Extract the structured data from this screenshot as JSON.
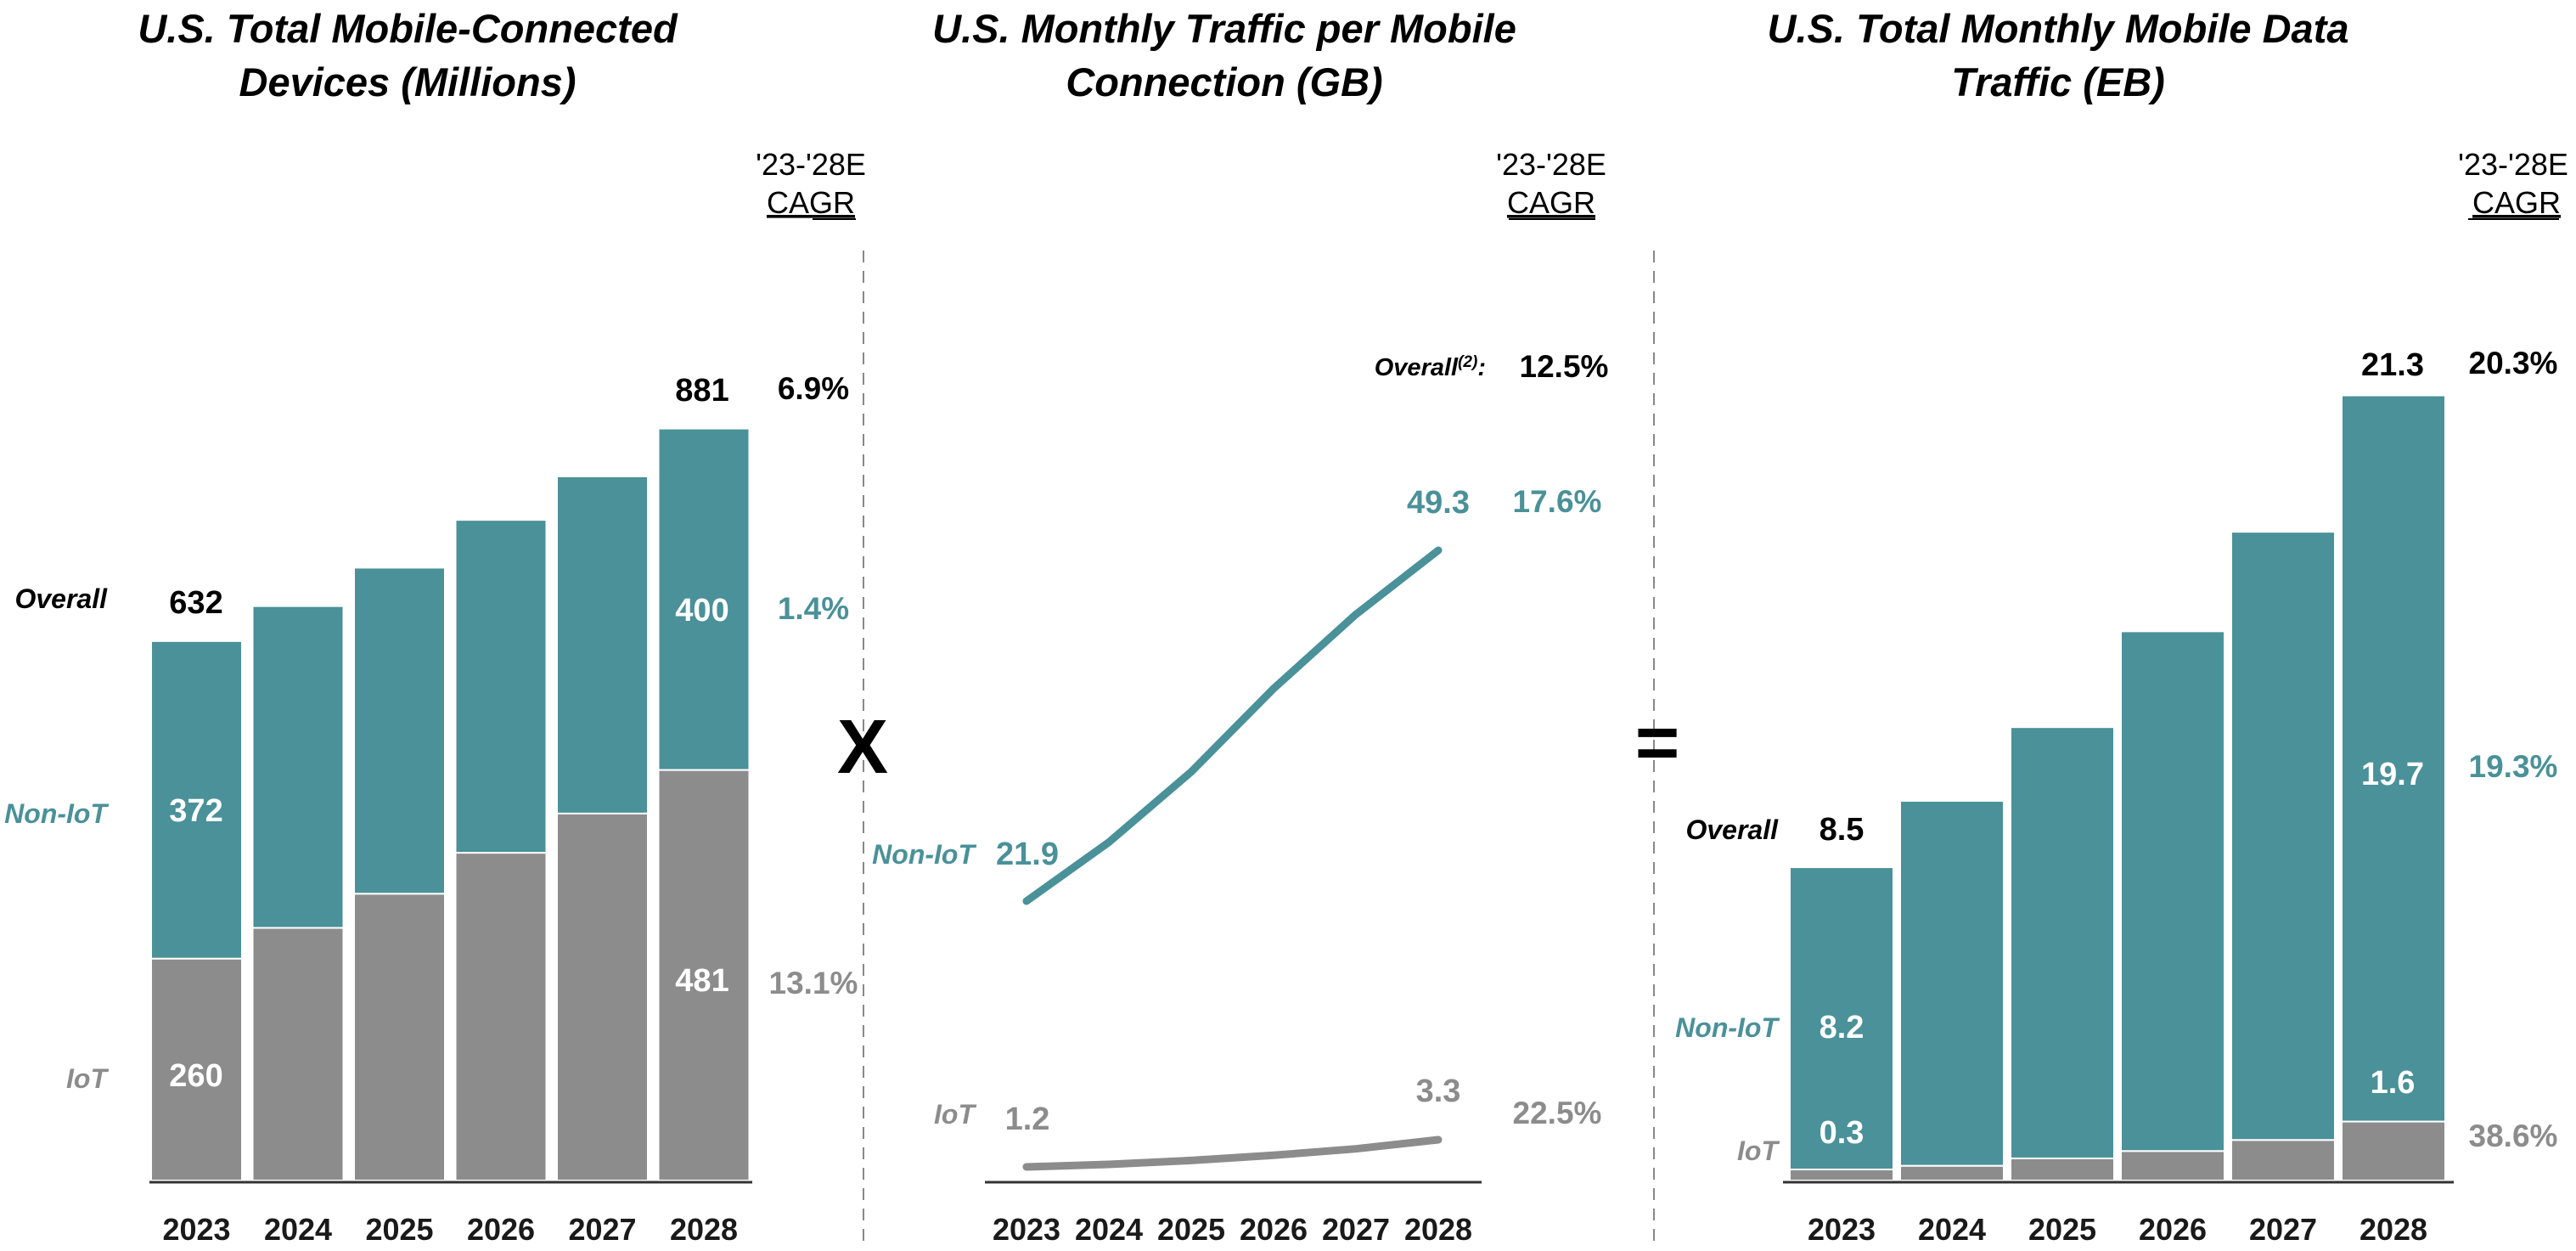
{
  "colors": {
    "non_iot": "#4a9199",
    "iot": "#8c8c8c",
    "overall": "#000000",
    "axis": "#333333",
    "separator": "#888888"
  },
  "cagr_header": {
    "line1": "'23-'28E",
    "line2": "CAGR"
  },
  "operators": {
    "multiply": "X",
    "equals": "="
  },
  "chart_data": [
    {
      "type": "bar",
      "stacked": true,
      "title": "U.S. Total Mobile-Connected Devices (Millions)",
      "title_lines": [
        "U.S. Total Mobile-Connected",
        "Devices (Millions)"
      ],
      "categories": [
        "2023",
        "2024",
        "2025",
        "2026",
        "2027",
        "2028"
      ],
      "series": [
        {
          "name": "IoT",
          "values": [
            260,
            296,
            336,
            384,
            430,
            481
          ]
        },
        {
          "name": "Non-IoT",
          "values": [
            372,
            377,
            382,
            390,
            395,
            400
          ]
        }
      ],
      "totals": [
        632,
        673,
        718,
        774,
        825,
        881
      ],
      "labels": {
        "overall_total": "632",
        "final_total": "881",
        "non_iot_first": "372",
        "non_iot_last": "400",
        "iot_first": "260",
        "iot_last": "481"
      },
      "side_labels": {
        "overall": "Overall",
        "non_iot": "Non-IoT",
        "iot": "IoT"
      },
      "cagr": {
        "overall": "6.9%",
        "non_iot": "1.4%",
        "iot": "13.1%"
      },
      "ylim": [
        0,
        1000
      ],
      "xlabel": "",
      "ylabel": ""
    },
    {
      "type": "line",
      "title": "U.S. Monthly Traffic per Mobile Connection (GB)",
      "title_lines": [
        "U.S. Monthly Traffic per Mobile",
        "Connection (GB)"
      ],
      "categories": [
        "2023",
        "2024",
        "2025",
        "2026",
        "2027",
        "2028"
      ],
      "series": [
        {
          "name": "Non-IoT",
          "values": [
            21.9,
            26.5,
            32.0,
            38.5,
            44.3,
            49.3
          ]
        },
        {
          "name": "IoT",
          "values": [
            1.2,
            1.4,
            1.7,
            2.1,
            2.6,
            3.3
          ]
        }
      ],
      "labels": {
        "non_iot_first": "21.9",
        "non_iot_last": "49.3",
        "iot_first": "1.2",
        "iot_last": "3.3"
      },
      "side_labels": {
        "non_iot": "Non-IoT",
        "iot": "IoT"
      },
      "overall_label": "Overall",
      "overall_footnote": "(2)",
      "cagr": {
        "overall": "12.5%",
        "non_iot": "17.6%",
        "iot": "22.5%"
      },
      "ylim": [
        0,
        60
      ],
      "xlabel": "",
      "ylabel": ""
    },
    {
      "type": "bar",
      "stacked": true,
      "title": "U.S. Total Monthly Mobile Data Traffic (EB)",
      "title_lines": [
        "U.S. Total Monthly Mobile Data",
        "Traffic (EB)"
      ],
      "categories": [
        "2023",
        "2024",
        "2025",
        "2026",
        "2027",
        "2028"
      ],
      "series": [
        {
          "name": "IoT",
          "values": [
            0.3,
            0.4,
            0.6,
            0.8,
            1.1,
            1.6
          ]
        },
        {
          "name": "Non-IoT",
          "values": [
            8.2,
            9.9,
            11.7,
            14.1,
            16.5,
            19.7
          ]
        }
      ],
      "totals": [
        8.5,
        10.3,
        12.3,
        14.9,
        17.6,
        21.3
      ],
      "labels": {
        "overall_total": "8.5",
        "final_total": "21.3",
        "non_iot_first": "8.2",
        "non_iot_last": "19.7",
        "iot_first": "0.3",
        "iot_last": "1.6"
      },
      "side_labels": {
        "overall": "Overall",
        "non_iot": "Non-IoT",
        "iot": "IoT"
      },
      "cagr": {
        "overall": "20.3%",
        "non_iot": "19.3%",
        "iot": "38.6%"
      },
      "ylim": [
        0,
        25
      ],
      "xlabel": "",
      "ylabel": ""
    }
  ]
}
